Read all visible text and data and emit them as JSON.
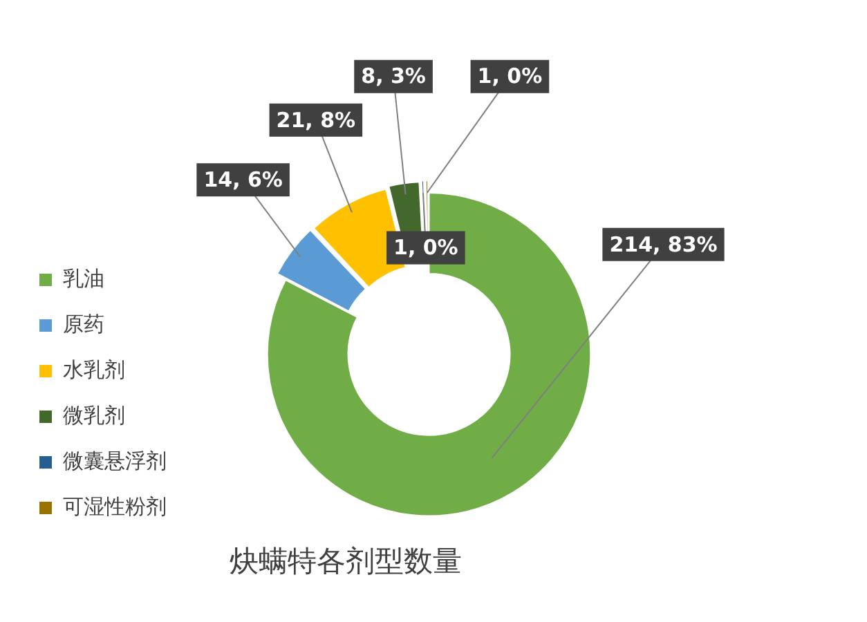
{
  "chart_data": {
    "type": "donut",
    "title": "炔螨特各剂型数量",
    "categories": [
      "乳油",
      "原药",
      "水乳剂",
      "微乳剂",
      "微囊悬浮剂",
      "可湿性粉剂"
    ],
    "values": [
      214,
      14,
      21,
      8,
      1,
      1
    ],
    "colors": [
      "#70ad47",
      "#5b9bd5",
      "#ffc000",
      "#43682b",
      "#255e91",
      "#997300"
    ],
    "value_labels": [
      "214, 83%",
      "14, 6%",
      "21, 8%",
      "8, 3%",
      "1, 0%",
      "1, 0%"
    ],
    "legend": "left"
  }
}
